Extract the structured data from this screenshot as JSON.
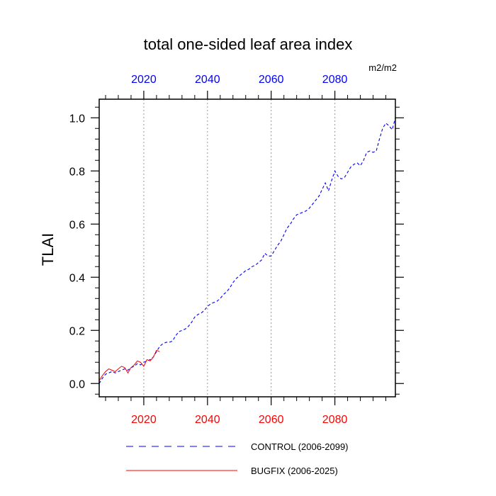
{
  "chart_data": {
    "type": "line",
    "title": "total one-sided leaf area index",
    "units": "m2/m2",
    "ylabel": "TLAI",
    "xlabel": "",
    "xlim": [
      2006,
      2099
    ],
    "ylim": [
      -0.05,
      1.07
    ],
    "yticks": [
      0.0,
      0.2,
      0.4,
      0.6,
      0.8,
      1.0
    ],
    "ytick_labels": [
      "0.0",
      "0.2",
      "0.4",
      "0.6",
      "0.8",
      "1.0"
    ],
    "xticks": [
      2020,
      2040,
      2060,
      2080
    ],
    "xtick_labels": [
      "2020",
      "2040",
      "2060",
      "2080"
    ],
    "top_xtick_labels": [
      "2020",
      "2040",
      "2060",
      "2080"
    ],
    "grid": "vertical dotted at major x ticks",
    "legend_position": "bottom",
    "series": [
      {
        "name": "CONTROL (2006-2099)",
        "color": "#0000ff",
        "style": "dashed",
        "x": [
          2006,
          2007,
          2008,
          2009,
          2010,
          2011,
          2012,
          2013,
          2014,
          2015,
          2016,
          2017,
          2018,
          2019,
          2020,
          2021,
          2022,
          2023,
          2024,
          2025,
          2026,
          2027,
          2028,
          2029,
          2030,
          2031,
          2032,
          2033,
          2034,
          2035,
          2036,
          2037,
          2038,
          2039,
          2040,
          2041,
          2042,
          2043,
          2044,
          2045,
          2046,
          2047,
          2048,
          2049,
          2050,
          2051,
          2052,
          2053,
          2054,
          2055,
          2056,
          2057,
          2058,
          2059,
          2060,
          2061,
          2062,
          2063,
          2064,
          2065,
          2066,
          2067,
          2068,
          2069,
          2070,
          2071,
          2072,
          2073,
          2074,
          2075,
          2076,
          2077,
          2078,
          2079,
          2080,
          2081,
          2082,
          2083,
          2084,
          2085,
          2086,
          2087,
          2088,
          2089,
          2090,
          2091,
          2092,
          2093,
          2094,
          2095,
          2096,
          2097,
          2098,
          2099
        ],
        "y": [
          0.0,
          0.02,
          0.035,
          0.04,
          0.045,
          0.04,
          0.045,
          0.05,
          0.055,
          0.05,
          0.06,
          0.065,
          0.075,
          0.07,
          0.08,
          0.085,
          0.09,
          0.1,
          0.12,
          0.14,
          0.15,
          0.155,
          0.155,
          0.16,
          0.18,
          0.195,
          0.2,
          0.205,
          0.215,
          0.23,
          0.25,
          0.26,
          0.265,
          0.275,
          0.29,
          0.3,
          0.305,
          0.31,
          0.32,
          0.335,
          0.345,
          0.36,
          0.38,
          0.395,
          0.405,
          0.415,
          0.425,
          0.43,
          0.44,
          0.445,
          0.455,
          0.465,
          0.49,
          0.48,
          0.48,
          0.5,
          0.52,
          0.535,
          0.56,
          0.585,
          0.6,
          0.62,
          0.635,
          0.64,
          0.645,
          0.65,
          0.66,
          0.675,
          0.69,
          0.705,
          0.73,
          0.755,
          0.725,
          0.765,
          0.8,
          0.78,
          0.77,
          0.775,
          0.795,
          0.815,
          0.825,
          0.83,
          0.82,
          0.84,
          0.87,
          0.875,
          0.87,
          0.875,
          0.92,
          0.96,
          0.98,
          0.97,
          0.955,
          1.0
        ]
      },
      {
        "name": "BUGFIX (2006-2025)",
        "color": "#ff0000",
        "style": "solid",
        "x": [
          2006,
          2007,
          2008,
          2009,
          2010,
          2011,
          2012,
          2013,
          2014,
          2015,
          2016,
          2017,
          2018,
          2019,
          2020,
          2021,
          2022,
          2023,
          2024,
          2025
        ],
        "y": [
          0.01,
          0.03,
          0.045,
          0.055,
          0.05,
          0.045,
          0.055,
          0.065,
          0.06,
          0.04,
          0.06,
          0.07,
          0.085,
          0.08,
          0.065,
          0.09,
          0.085,
          0.1,
          0.125,
          0.12
        ]
      }
    ]
  }
}
